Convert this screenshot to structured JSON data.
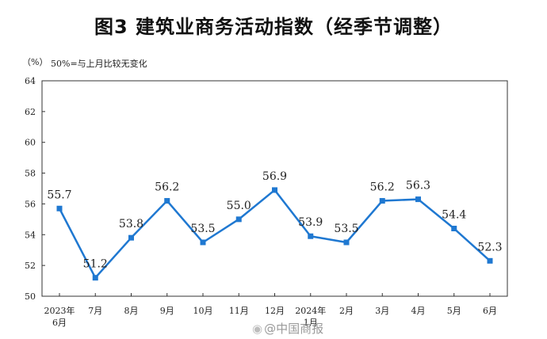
{
  "chart_data": {
    "type": "line",
    "title": "图3  建筑业商务活动指数（经季节调整）",
    "unit_label": "（%）",
    "note": "50%=与上月比较无变化",
    "ylim": [
      50,
      64
    ],
    "yticks": [
      "50",
      "52",
      "54",
      "56",
      "58",
      "60",
      "62",
      "64"
    ],
    "categories": [
      [
        "2023年",
        "6月"
      ],
      [
        "7月"
      ],
      [
        "8月"
      ],
      [
        "9月"
      ],
      [
        "10月"
      ],
      [
        "11月"
      ],
      [
        "12月"
      ],
      [
        "2024年",
        "1月"
      ],
      [
        "2月"
      ],
      [
        "3月"
      ],
      [
        "4月"
      ],
      [
        "5月"
      ],
      [
        "6月"
      ]
    ],
    "series": [
      {
        "name": "建筑业商务活动指数",
        "values": [
          55.7,
          51.2,
          53.8,
          56.2,
          53.5,
          55.0,
          56.9,
          53.9,
          53.5,
          56.2,
          56.3,
          54.4,
          52.3
        ],
        "labels": [
          "55.7",
          "51.2",
          "53.8",
          "56.2",
          "53.5",
          "55.0",
          "56.9",
          "53.9",
          "53.5",
          "56.2",
          "56.3",
          "54.4",
          "52.3"
        ],
        "color": "#1f78d1"
      }
    ]
  },
  "watermark": {
    "icon": "weibo-icon",
    "text": "@中国商报"
  }
}
